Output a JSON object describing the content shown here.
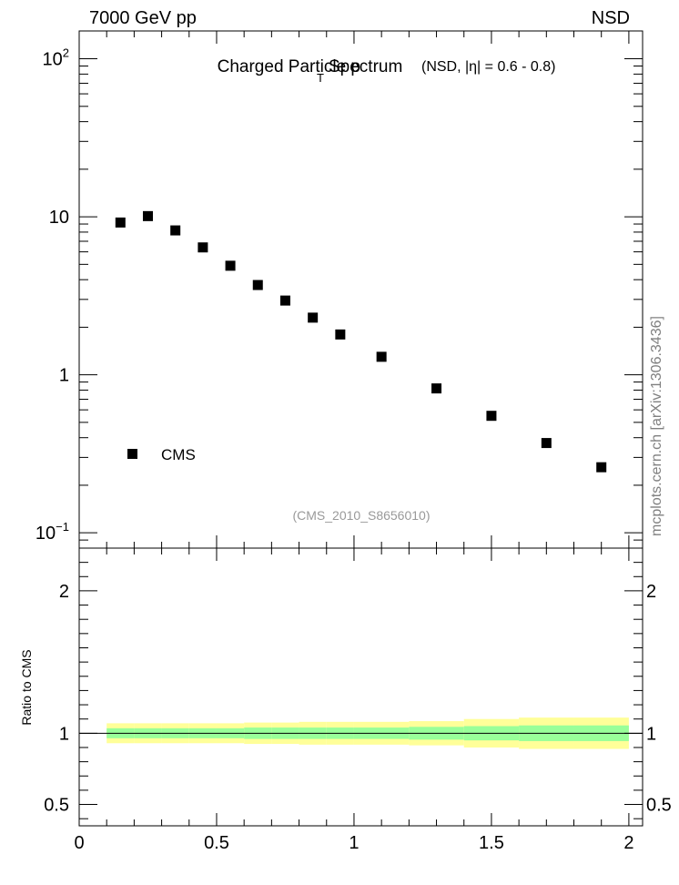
{
  "header": {
    "left": "7000 GeV pp",
    "right": "NSD"
  },
  "side_label": "mcplots.cern.ch [arXiv:1306.3436]",
  "title": {
    "main_prefix": "Charged Particle p",
    "main_sub": "T",
    "main_suffix": "Spectrum",
    "detail": "(NSD, |η| = 0.6 - 0.8)"
  },
  "analysis_id": "(CMS_2010_S8656010)",
  "chart_data": [
    {
      "type": "scatter",
      "yscale": "log",
      "ylim": [
        0.08,
        150
      ],
      "xlim": [
        0,
        2.05
      ],
      "ytick_labels": [
        {
          "value": 0.1,
          "base": "10",
          "exp": "−1"
        },
        {
          "value": 1,
          "base": "1",
          "exp": ""
        },
        {
          "value": 10,
          "base": "10",
          "exp": ""
        },
        {
          "value": 100,
          "base": "10",
          "exp": "2"
        }
      ],
      "legend": {
        "label": "CMS",
        "placement": "lower-left"
      },
      "series": [
        {
          "name": "CMS",
          "x": [
            0.15,
            0.25,
            0.35,
            0.45,
            0.55,
            0.65,
            0.75,
            0.85,
            0.95,
            1.1,
            1.3,
            1.5,
            1.7,
            1.9
          ],
          "y": [
            9.2,
            10.1,
            8.2,
            6.4,
            4.9,
            3.7,
            2.95,
            2.3,
            1.8,
            1.3,
            0.82,
            0.55,
            0.37,
            0.26
          ]
        }
      ]
    },
    {
      "type": "area",
      "ylabel": "Ratio to CMS",
      "ylim": [
        0.35,
        2.3
      ],
      "xlim": [
        0,
        2.05
      ],
      "ytick_labels": [
        "0.5",
        "1",
        "2"
      ],
      "xtick_labels": [
        "0",
        "0.5",
        "1",
        "1.5",
        "2"
      ],
      "bands": {
        "bin_edges": [
          0.1,
          0.2,
          0.3,
          0.4,
          0.5,
          0.6,
          0.7,
          0.8,
          0.9,
          1.0,
          1.2,
          1.4,
          1.6,
          1.8,
          2.0
        ],
        "outer_halfwidth": [
          0.07,
          0.07,
          0.07,
          0.07,
          0.07,
          0.075,
          0.075,
          0.08,
          0.08,
          0.08,
          0.085,
          0.1,
          0.11,
          0.11
        ],
        "inner_halfwidth": [
          0.035,
          0.035,
          0.035,
          0.035,
          0.035,
          0.04,
          0.04,
          0.04,
          0.04,
          0.04,
          0.045,
          0.05,
          0.055,
          0.055
        ],
        "outer_color": "#ffff99",
        "inner_color": "#99ff99"
      },
      "reference_value": 1
    }
  ]
}
